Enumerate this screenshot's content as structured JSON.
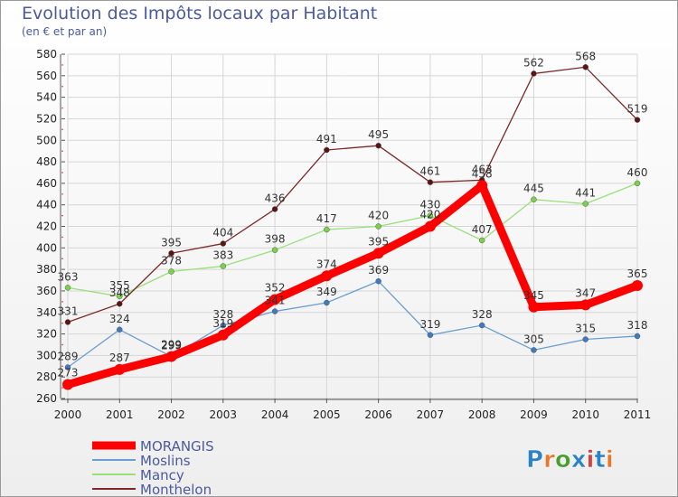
{
  "title": "Evolution des Impôts locaux par Habitant",
  "subtitle": "(en € et par an)",
  "brand": {
    "text": "Proxiti",
    "colors": [
      "#2b82c9",
      "#e8762b",
      "#4a9e2e",
      "#2b82c9",
      "#e23d3d",
      "#2b82c9",
      "#e8762b"
    ]
  },
  "chart_data": {
    "type": "line",
    "title": "Evolution des Impôts locaux par Habitant",
    "subtitle": "(en € et par an)",
    "xlabel": "",
    "ylabel": "",
    "ylim": [
      260,
      580
    ],
    "ytick_step": 20,
    "grid": true,
    "legend_position": "bottom-left",
    "categories": [
      "2000",
      "2001",
      "2002",
      "2003",
      "2004",
      "2005",
      "2006",
      "2007",
      "2008",
      "2009",
      "2010",
      "2011"
    ],
    "series": [
      {
        "name": "MORANGIS",
        "color": "#ff0000",
        "marker": "#ff0000",
        "values": [
          273,
          287,
          299,
          319,
          352,
          374,
          395,
          420,
          458,
          345,
          347,
          365
        ]
      },
      {
        "name": "Moslins",
        "color": "#6a9fd0",
        "marker": "#3d7bc4",
        "values": [
          289,
          324,
          299,
          328,
          341,
          349,
          369,
          319,
          328,
          305,
          315,
          318
        ]
      },
      {
        "name": "Mancy",
        "color": "#99e07a",
        "marker": "#7ad24a",
        "values": [
          363,
          355,
          378,
          383,
          398,
          417,
          420,
          430,
          407,
          445,
          441,
          460
        ]
      },
      {
        "name": "Monthelon",
        "color": "#7a2a2a",
        "marker": "#5a1414",
        "values": [
          331,
          348,
          395,
          404,
          436,
          491,
          495,
          461,
          463,
          562,
          568,
          519
        ]
      }
    ]
  }
}
